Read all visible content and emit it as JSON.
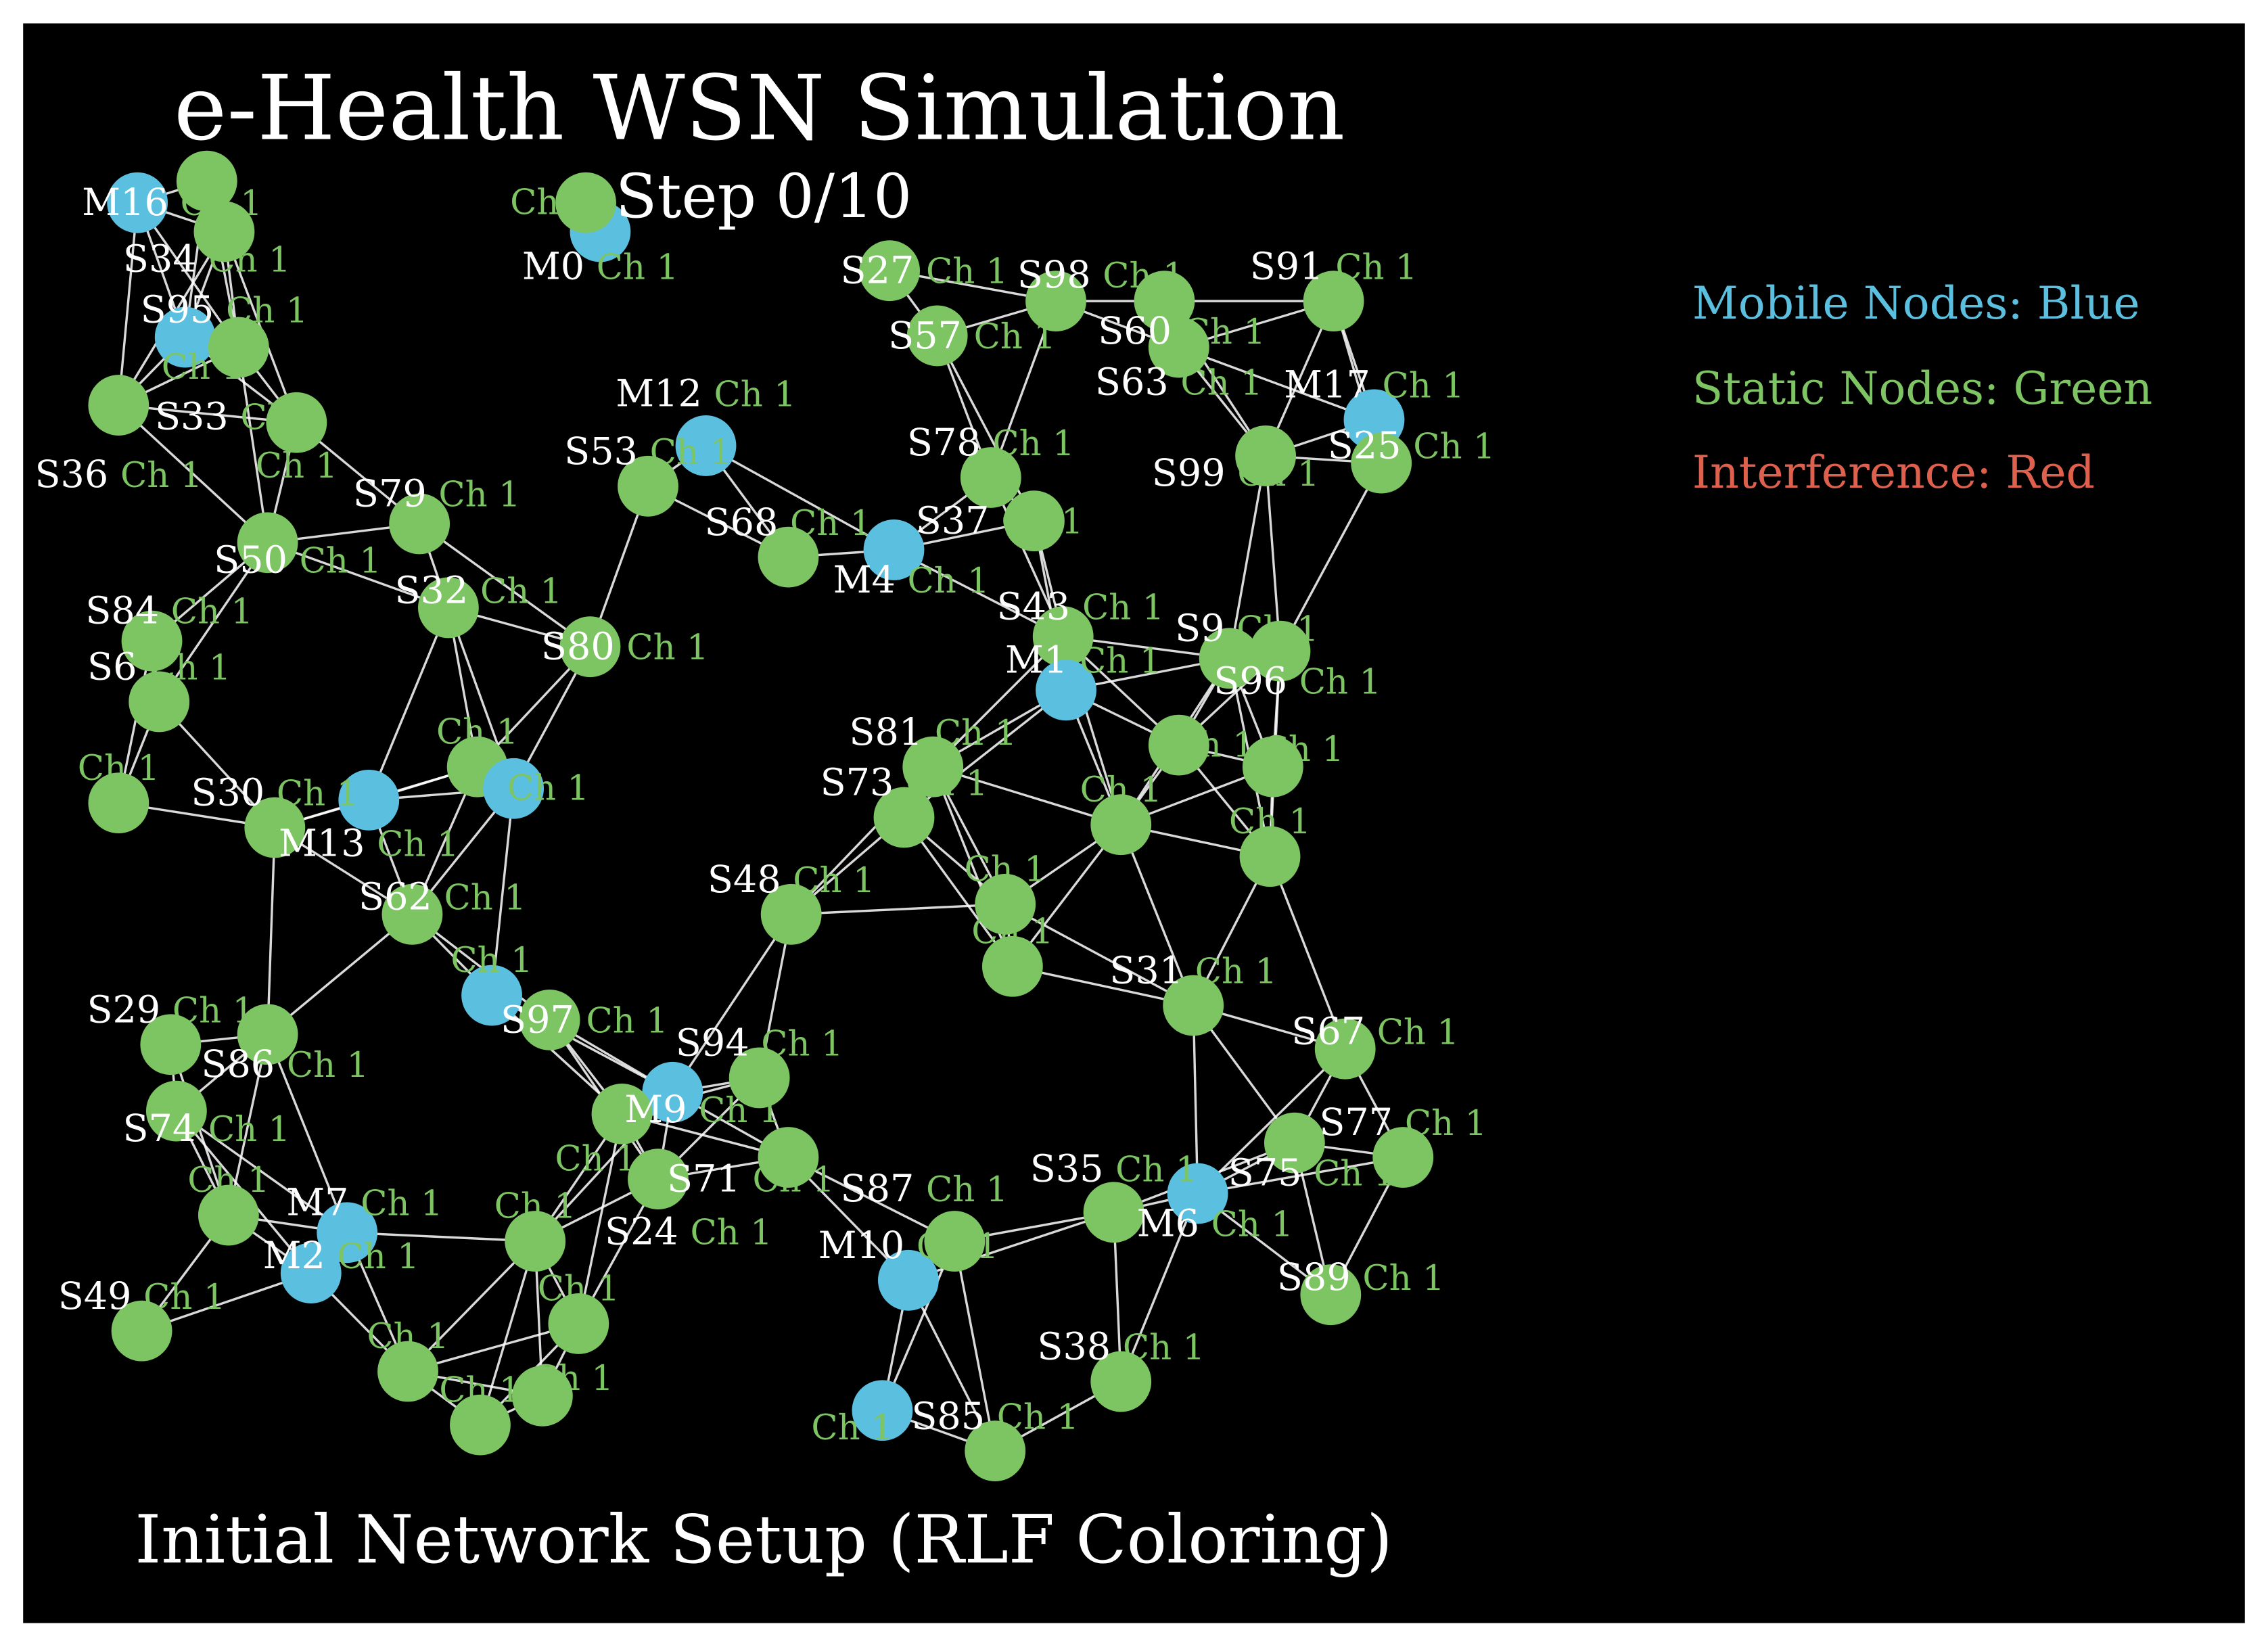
{
  "title": "e-Health WSN Simulation",
  "subtitle": "Step 0/10",
  "caption": "Initial Network Setup (RLF Coloring)",
  "legend": [
    {
      "label": "Mobile Nodes: Blue",
      "color": "#5bbfe0"
    },
    {
      "label": "Static Nodes: Green",
      "color": "#7dc462"
    },
    {
      "label": "Interference: Red",
      "color": "#e0604e"
    }
  ],
  "colors": {
    "background": "#000000",
    "mobile": "#5bbfe0",
    "static": "#7dc462",
    "edge": "#ffffff",
    "channel_text": "#7dc462",
    "label_text": "#ffffff"
  },
  "nodes": [
    {
      "label": "M16",
      "type": "mobile",
      "channel": "Ch 1"
    },
    {
      "label": "S34",
      "type": "static",
      "channel": "Ch 1"
    },
    {
      "label": "S95",
      "type": "static",
      "channel": "Ch 1"
    },
    {
      "label": "",
      "type": "mobile",
      "channel": "Ch 1"
    },
    {
      "label": "S33",
      "type": "static",
      "channel": "Ch 1"
    },
    {
      "label": "S36",
      "type": "static",
      "channel": "Ch 1"
    },
    {
      "label": "",
      "type": "static",
      "channel": "Ch 1"
    },
    {
      "label": "S79",
      "type": "static",
      "channel": "Ch 1"
    },
    {
      "label": "S50",
      "type": "static",
      "channel": "Ch 1"
    },
    {
      "label": "S84",
      "type": "static",
      "channel": "Ch 1"
    },
    {
      "label": "S6",
      "type": "static",
      "channel": "Ch 1"
    },
    {
      "label": "",
      "type": "static",
      "channel": "Ch 1"
    },
    {
      "label": "S30",
      "type": "static",
      "channel": "Ch 1"
    },
    {
      "label": "M13",
      "type": "mobile",
      "channel": "Ch 1"
    },
    {
      "label": "S32",
      "type": "static",
      "channel": "Ch 1"
    },
    {
      "label": "",
      "type": "static",
      "channel": "Ch 1"
    },
    {
      "label": "",
      "type": "mobile",
      "channel": "Ch 1"
    },
    {
      "label": "S62",
      "type": "static",
      "channel": "Ch 1"
    },
    {
      "label": "S29",
      "type": "static",
      "channel": "Ch 1"
    },
    {
      "label": "S86",
      "type": "static",
      "channel": "Ch 1"
    },
    {
      "label": "",
      "type": "mobile",
      "channel": "Ch 1"
    },
    {
      "label": "S97",
      "type": "static",
      "channel": "Ch 1"
    },
    {
      "label": "S74",
      "type": "static",
      "channel": "Ch 1"
    },
    {
      "label": "",
      "type": "static",
      "channel": "Ch 1"
    },
    {
      "label": "M7",
      "type": "mobile",
      "channel": "Ch 1"
    },
    {
      "label": "M2",
      "type": "mobile",
      "channel": "Ch 1"
    },
    {
      "label": "S49",
      "type": "static",
      "channel": "Ch 1"
    },
    {
      "label": "",
      "type": "static",
      "channel": "Ch 1"
    },
    {
      "label": "",
      "type": "static",
      "channel": "Ch 1"
    },
    {
      "label": "",
      "type": "static",
      "channel": "Ch 1"
    },
    {
      "label": "",
      "type": "static",
      "channel": "Ch 1"
    },
    {
      "label": "",
      "type": "static",
      "channel": "Ch 1"
    },
    {
      "label": "S80",
      "type": "static",
      "channel": "Ch 1"
    },
    {
      "label": "S53",
      "type": "static",
      "channel": "Ch 1"
    },
    {
      "label": "M12",
      "type": "mobile",
      "channel": "Ch 1"
    },
    {
      "label": "M0",
      "type": "mobile",
      "channel": "Ch 1"
    },
    {
      "label": "",
      "type": "static",
      "channel": "Ch 1"
    },
    {
      "label": "S68",
      "type": "static",
      "channel": "Ch 1"
    },
    {
      "label": "M4",
      "type": "mobile",
      "channel": "Ch 1"
    },
    {
      "label": "S27",
      "type": "static",
      "channel": "Ch 1"
    },
    {
      "label": "S57",
      "type": "static",
      "channel": "Ch 1"
    },
    {
      "label": "S98",
      "type": "static",
      "channel": "Ch 1"
    },
    {
      "label": "S60",
      "type": "static",
      "channel": "Ch 1"
    },
    {
      "label": "S63",
      "type": "static",
      "channel": "Ch 1"
    },
    {
      "label": "S91",
      "type": "static",
      "channel": "Ch 1"
    },
    {
      "label": "M17",
      "type": "mobile",
      "channel": "Ch 1"
    },
    {
      "label": "S25",
      "type": "static",
      "channel": "Ch 1"
    },
    {
      "label": "S99",
      "type": "static",
      "channel": "Ch 1"
    },
    {
      "label": "S78",
      "type": "static",
      "channel": "Ch 1"
    },
    {
      "label": "S37",
      "type": "static",
      "channel": "Ch 1"
    },
    {
      "label": "S43",
      "type": "static",
      "channel": "Ch 1"
    },
    {
      "label": "M1",
      "type": "mobile",
      "channel": "Ch 1"
    },
    {
      "label": "S9",
      "type": "static",
      "channel": "Ch 1"
    },
    {
      "label": "S96",
      "type": "static",
      "channel": "Ch 1"
    },
    {
      "label": "S81",
      "type": "static",
      "channel": "Ch 1"
    },
    {
      "label": "S73",
      "type": "static",
      "channel": "Ch 1"
    },
    {
      "label": "",
      "type": "static",
      "channel": "Ch 1"
    },
    {
      "label": "",
      "type": "static",
      "channel": "Ch 1"
    },
    {
      "label": "",
      "type": "static",
      "channel": "Ch 1"
    },
    {
      "label": "",
      "type": "static",
      "channel": "Ch 1"
    },
    {
      "label": "S48",
      "type": "static",
      "channel": "Ch 1"
    },
    {
      "label": "",
      "type": "static",
      "channel": "Ch 1"
    },
    {
      "label": "",
      "type": "static",
      "channel": "Ch 1"
    },
    {
      "label": "S31",
      "type": "static",
      "channel": "Ch 1"
    },
    {
      "label": "S67",
      "type": "static",
      "channel": "Ch 1"
    },
    {
      "label": "S77",
      "type": "static",
      "channel": "Ch 1"
    },
    {
      "label": "S75",
      "type": "static",
      "channel": "Ch 1"
    },
    {
      "label": "M6",
      "type": "mobile",
      "channel": "Ch 1"
    },
    {
      "label": "S35",
      "type": "static",
      "channel": "Ch 1"
    },
    {
      "label": "S89",
      "type": "static",
      "channel": "Ch 1"
    },
    {
      "label": "S38",
      "type": "static",
      "channel": "Ch 1"
    },
    {
      "label": "S85",
      "type": "static",
      "channel": "Ch 1"
    },
    {
      "label": "",
      "type": "mobile",
      "channel": "Ch 1"
    },
    {
      "label": "M10",
      "type": "mobile",
      "channel": "Ch 1"
    },
    {
      "label": "S87",
      "type": "static",
      "channel": "Ch 1"
    },
    {
      "label": "S94",
      "type": "static",
      "channel": "Ch 1"
    },
    {
      "label": "M9",
      "type": "mobile",
      "channel": "Ch 1"
    },
    {
      "label": "S71",
      "type": "static",
      "channel": "Ch 1"
    },
    {
      "label": "S24",
      "type": "static",
      "channel": "Ch 1"
    },
    {
      "label": "",
      "type": "static",
      "channel": "Ch 1"
    }
  ]
}
